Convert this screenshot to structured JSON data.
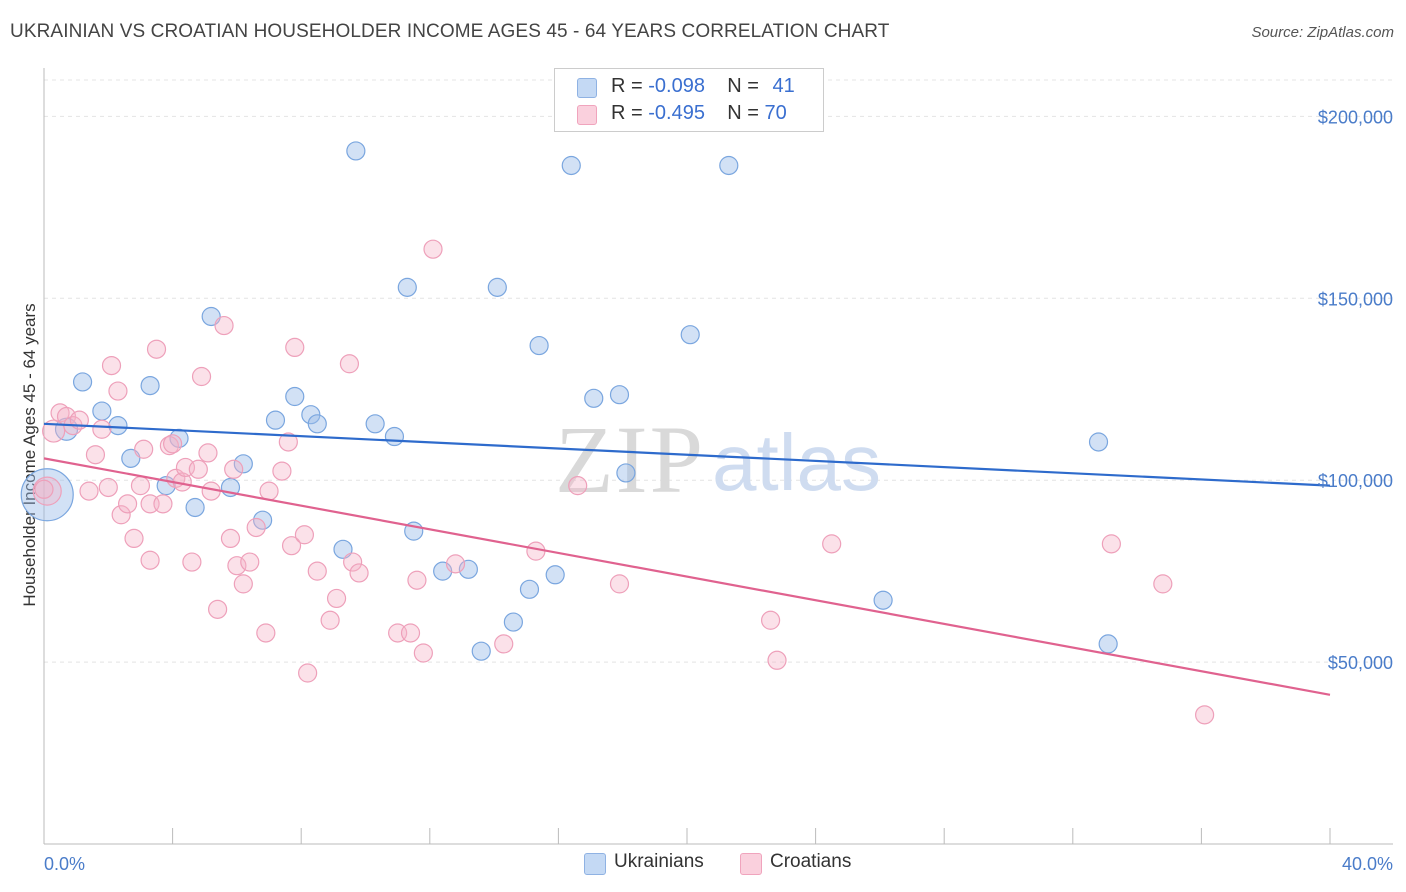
{
  "title": "UKRAINIAN VS CROATIAN HOUSEHOLDER INCOME AGES 45 - 64 YEARS CORRELATION CHART",
  "source": "Source: ZipAtlas.com",
  "watermark": {
    "zip": "ZIP",
    "atlas": "atlas"
  },
  "legend": {
    "r_label": "R =",
    "n_label": "N =",
    "rows": [
      {
        "name": "Ukrainians",
        "r": "-0.098",
        "n": "41",
        "color": "#9bbde8"
      },
      {
        "name": "Croatians",
        "r": "-0.495",
        "n": "70",
        "color": "#f2a8c0"
      }
    ]
  },
  "colors": {
    "ukrainians": "#6e9fdc",
    "croatians": "#ee8fb0",
    "ukr_line": "#2e6bcc",
    "cro_line": "#e0628f",
    "axis_text": "#4a7cc9"
  },
  "chart_data": {
    "type": "scatter",
    "title": "UKRAINIAN VS CROATIAN HOUSEHOLDER INCOME AGES 45 - 64 YEARS CORRELATION CHART",
    "xlabel": "",
    "ylabel": "Householder Income Ages 45 - 64 years",
    "xlim": [
      0,
      40
    ],
    "ylim": [
      0,
      210000
    ],
    "x_tick_labels": [
      "0.0%",
      "40.0%"
    ],
    "y_ticks": [
      50000,
      100000,
      150000,
      200000
    ],
    "y_tick_labels": [
      "$50,000",
      "$100,000",
      "$150,000",
      "$200,000"
    ],
    "grid": true,
    "legend_position": "top-center",
    "series": [
      {
        "name": "Ukrainians",
        "trend": {
          "x": [
            0,
            40
          ],
          "y": [
            115500,
            98500
          ]
        },
        "points": [
          [
            0.1,
            96000,
            26
          ],
          [
            0.7,
            114000,
            11
          ],
          [
            1.2,
            127000,
            9
          ],
          [
            1.8,
            119000,
            9
          ],
          [
            2.3,
            115000,
            9
          ],
          [
            2.7,
            106000,
            9
          ],
          [
            3.3,
            126000,
            9
          ],
          [
            3.8,
            98500,
            9
          ],
          [
            4.2,
            111500,
            9
          ],
          [
            4.7,
            92500,
            9
          ],
          [
            5.2,
            145000,
            9
          ],
          [
            5.8,
            98000,
            9
          ],
          [
            6.2,
            104500,
            9
          ],
          [
            6.8,
            89000,
            9
          ],
          [
            7.2,
            116500,
            9
          ],
          [
            7.8,
            123000,
            9
          ],
          [
            8.3,
            118000,
            9
          ],
          [
            8.5,
            115500,
            9
          ],
          [
            9.3,
            81000,
            9
          ],
          [
            9.7,
            190500,
            9
          ],
          [
            10.3,
            115500,
            9
          ],
          [
            10.9,
            112000,
            9
          ],
          [
            11.3,
            153000,
            9
          ],
          [
            11.5,
            86000,
            9
          ],
          [
            12.4,
            75000,
            9
          ],
          [
            13.2,
            75500,
            9
          ],
          [
            13.6,
            53000,
            9
          ],
          [
            14.1,
            153000,
            9
          ],
          [
            14.6,
            61000,
            9
          ],
          [
            15.1,
            70000,
            9
          ],
          [
            15.4,
            137000,
            9
          ],
          [
            15.9,
            74000,
            9
          ],
          [
            16.4,
            186500,
            9
          ],
          [
            17.1,
            122500,
            9
          ],
          [
            17.9,
            123500,
            9
          ],
          [
            18.1,
            102000,
            9
          ],
          [
            20.1,
            140000,
            9
          ],
          [
            21.3,
            186500,
            9
          ],
          [
            26.1,
            67000,
            9
          ],
          [
            32.8,
            110500,
            9
          ],
          [
            33.1,
            55000,
            9
          ]
        ]
      },
      {
        "name": "Croatians",
        "trend": {
          "x": [
            0,
            40
          ],
          "y": [
            106000,
            41000
          ]
        },
        "points": [
          [
            0.1,
            97000,
            14
          ],
          [
            0.3,
            113500,
            11
          ],
          [
            0.5,
            118500,
            9
          ],
          [
            0.7,
            117500,
            9
          ],
          [
            0.9,
            115000,
            9
          ],
          [
            1.1,
            116500,
            9
          ],
          [
            1.4,
            97000,
            9
          ],
          [
            1.6,
            107000,
            9
          ],
          [
            1.8,
            114000,
            9
          ],
          [
            2.0,
            98000,
            9
          ],
          [
            2.1,
            131500,
            9
          ],
          [
            2.3,
            124500,
            9
          ],
          [
            2.4,
            90500,
            9
          ],
          [
            2.6,
            93500,
            9
          ],
          [
            2.8,
            84000,
            9
          ],
          [
            3.0,
            98500,
            9
          ],
          [
            3.1,
            108500,
            9
          ],
          [
            3.3,
            93500,
            9
          ],
          [
            3.3,
            78000,
            9
          ],
          [
            3.5,
            136000,
            9
          ],
          [
            3.7,
            93500,
            9
          ],
          [
            3.9,
            109500,
            9
          ],
          [
            4.0,
            110000,
            9
          ],
          [
            4.1,
            100500,
            9
          ],
          [
            4.3,
            99500,
            9
          ],
          [
            4.4,
            103500,
            9
          ],
          [
            4.6,
            77500,
            9
          ],
          [
            4.8,
            103000,
            9
          ],
          [
            4.9,
            128500,
            9
          ],
          [
            5.1,
            107500,
            9
          ],
          [
            5.2,
            97000,
            9
          ],
          [
            5.4,
            64500,
            9
          ],
          [
            5.6,
            142500,
            9
          ],
          [
            5.8,
            84000,
            9
          ],
          [
            5.9,
            103000,
            9
          ],
          [
            6.0,
            76500,
            9
          ],
          [
            6.2,
            71500,
            9
          ],
          [
            6.4,
            77500,
            9
          ],
          [
            6.6,
            87000,
            9
          ],
          [
            6.9,
            58000,
            9
          ],
          [
            7.0,
            97000,
            9
          ],
          [
            7.4,
            102500,
            9
          ],
          [
            7.6,
            110500,
            9
          ],
          [
            7.7,
            82000,
            9
          ],
          [
            7.8,
            136500,
            9
          ],
          [
            8.1,
            85000,
            9
          ],
          [
            8.2,
            47000,
            9
          ],
          [
            8.5,
            75000,
            9
          ],
          [
            8.9,
            61500,
            9
          ],
          [
            9.1,
            67500,
            9
          ],
          [
            9.5,
            132000,
            9
          ],
          [
            9.6,
            77500,
            9
          ],
          [
            9.8,
            74500,
            9
          ],
          [
            11.0,
            58000,
            9
          ],
          [
            11.4,
            58000,
            9
          ],
          [
            11.6,
            72500,
            9
          ],
          [
            11.8,
            52500,
            9
          ],
          [
            12.1,
            163500,
            9
          ],
          [
            12.8,
            77000,
            9
          ],
          [
            14.3,
            55000,
            9
          ],
          [
            15.3,
            80500,
            9
          ],
          [
            16.6,
            98500,
            9
          ],
          [
            17.9,
            71500,
            9
          ],
          [
            22.6,
            61500,
            9
          ],
          [
            22.8,
            50500,
            9
          ],
          [
            24.5,
            82500,
            9
          ],
          [
            33.2,
            82500,
            9
          ],
          [
            34.8,
            71500,
            9
          ],
          [
            36.1,
            35500,
            9
          ],
          [
            0.0,
            97500,
            9
          ]
        ]
      }
    ]
  }
}
